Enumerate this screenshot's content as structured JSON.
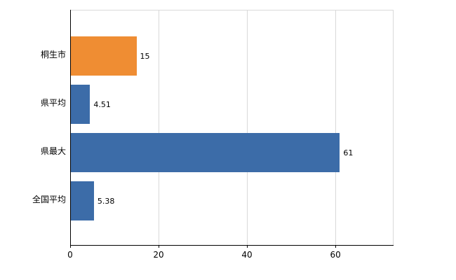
{
  "chart_data": {
    "type": "bar",
    "orientation": "horizontal",
    "title": "",
    "xlabel": "",
    "ylabel": "",
    "categories": [
      "桐生市",
      "県平均",
      "県最大",
      "全国平均"
    ],
    "values": [
      15,
      4.51,
      61,
      5.38
    ],
    "value_labels": [
      "15",
      "4.51",
      "61",
      "5.38"
    ],
    "bar_colors": [
      "#ef8d33",
      "#3c6ca8",
      "#3c6ca8",
      "#3c6ca8"
    ],
    "xlim": [
      0,
      73
    ],
    "xticks": [
      0,
      20,
      40,
      60
    ],
    "grid": true,
    "legend": "none"
  },
  "colors": {
    "background": "#ffffff",
    "grid": "#d9d9d9",
    "axis": "#000000",
    "text": "#000000"
  }
}
